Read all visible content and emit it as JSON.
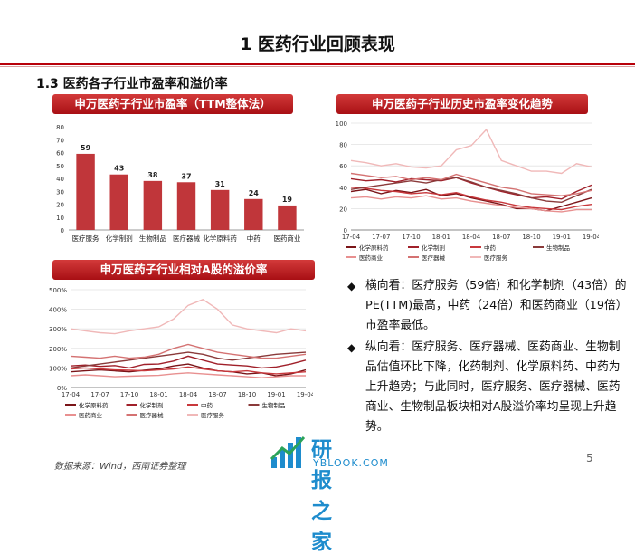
{
  "slide": {
    "title": "1 医药行业回顾表现",
    "section_heading": "1.3 医药各子行业市盈率和溢价率",
    "page_number": "5",
    "source_note": "数据来源：Wind，西南证券整理",
    "colors": {
      "accent": "#b8000a",
      "bar": "#c0363a"
    }
  },
  "banners": {
    "pe_bar": "申万医药子行业市盈率（TTM整体法）",
    "pe_trend": "申万医药子行业历史市盈率变化趋势",
    "premium": "申万医药子行业相对A股的溢价率"
  },
  "chart_data": [
    {
      "id": "pe_bar",
      "type": "bar",
      "title": "申万医药子行业市盈率（TTM整体法）",
      "categories": [
        "医疗服务",
        "化学制剂",
        "生物制品",
        "医疗器械",
        "化学原料药",
        "中药",
        "医药商业"
      ],
      "values": [
        59,
        43,
        38,
        37,
        31,
        24,
        19
      ],
      "ylim": [
        0,
        80
      ],
      "yticks": [
        "0",
        "10",
        "20",
        "30",
        "40",
        "50",
        "60",
        "70",
        "80"
      ],
      "ytick_values": [
        0,
        10,
        20,
        30,
        40,
        50,
        60,
        70,
        80
      ]
    },
    {
      "id": "pe_trend",
      "type": "line",
      "title": "申万医药子行业历史市盈率变化趋势",
      "ylim": [
        0,
        100
      ],
      "yticks": [
        "0",
        "20",
        "40",
        "60",
        "80",
        "100"
      ],
      "ytick_values": [
        0,
        20,
        40,
        60,
        80,
        100
      ],
      "xticks": [
        "17-04",
        "17-07",
        "17-10",
        "18-01",
        "18-04",
        "18-07",
        "18-10",
        "19-01",
        "19-04"
      ],
      "series": [
        {
          "name": "化学原料药",
          "color": "#7a1418",
          "dash": "",
          "values": [
            36,
            38,
            34,
            37,
            35,
            38,
            32,
            34,
            30,
            27,
            24,
            20,
            20,
            18,
            22,
            26,
            30
          ]
        },
        {
          "name": "化学制剂",
          "color": "#a0202a",
          "dash": "",
          "values": [
            48,
            46,
            47,
            45,
            48,
            47,
            46,
            49,
            44,
            40,
            36,
            33,
            30,
            31,
            29,
            36,
            42
          ]
        },
        {
          "name": "中药",
          "color": "#c8383c",
          "dash": "",
          "values": [
            40,
            39,
            37,
            36,
            34,
            35,
            33,
            35,
            31,
            28,
            26,
            23,
            21,
            20,
            19,
            22,
            24
          ]
        },
        {
          "name": "生物制品",
          "color": "#8a3a3a",
          "dash": "",
          "values": [
            38,
            40,
            42,
            44,
            46,
            44,
            47,
            49,
            45,
            40,
            37,
            34,
            30,
            27,
            26,
            32,
            38
          ]
        },
        {
          "name": "医药商业",
          "color": "#e89090",
          "dash": "",
          "values": [
            30,
            31,
            29,
            31,
            30,
            32,
            29,
            30,
            27,
            25,
            23,
            21,
            20,
            18,
            17,
            19,
            19
          ]
        },
        {
          "name": "医疗器械",
          "color": "#d47272",
          "dash": "",
          "values": [
            53,
            51,
            49,
            50,
            47,
            49,
            47,
            52,
            48,
            44,
            40,
            38,
            34,
            33,
            32,
            34,
            37
          ]
        },
        {
          "name": "医疗服务",
          "color": "#f0b8b8",
          "dash": "",
          "values": [
            65,
            63,
            60,
            62,
            59,
            58,
            60,
            75,
            79,
            94,
            65,
            60,
            55,
            55,
            53,
            62,
            59
          ]
        }
      ],
      "legend": [
        "化学原料药",
        "化学制剂",
        "中药",
        "生物制品",
        "医药商业",
        "医疗器械",
        "医疗服务"
      ]
    },
    {
      "id": "premium",
      "type": "line",
      "title": "申万医药子行业相对A股的溢价率",
      "ylim": [
        0,
        500
      ],
      "yticks": [
        "0%",
        "100%",
        "200%",
        "300%",
        "400%",
        "500%"
      ],
      "ytick_values": [
        0,
        100,
        200,
        300,
        400,
        500
      ],
      "xticks": [
        "17-04",
        "17-07",
        "17-10",
        "18-01",
        "18-04",
        "18-07",
        "18-10",
        "19-01",
        "19-04"
      ],
      "series": [
        {
          "name": "化学原料药",
          "color": "#7a1418",
          "dash": "",
          "values": [
            80,
            85,
            90,
            85,
            80,
            88,
            95,
            110,
            120,
            100,
            85,
            80,
            70,
            75,
            60,
            70,
            90
          ]
        },
        {
          "name": "化学制剂",
          "color": "#a0202a",
          "dash": "",
          "values": [
            110,
            115,
            108,
            112,
            100,
            118,
            120,
            135,
            160,
            140,
            120,
            115,
            110,
            100,
            105,
            120,
            140
          ]
        },
        {
          "name": "中药",
          "color": "#c8383c",
          "dash": "",
          "values": [
            95,
            100,
            95,
            90,
            88,
            85,
            90,
            95,
            105,
            95,
            85,
            80,
            85,
            75,
            70,
            75,
            80
          ]
        },
        {
          "name": "生物制品",
          "color": "#8a3a3a",
          "dash": "",
          "values": [
            100,
            110,
            120,
            130,
            140,
            150,
            160,
            170,
            180,
            170,
            150,
            140,
            150,
            160,
            170,
            175,
            180
          ]
        },
        {
          "name": "医药商业",
          "color": "#e89090",
          "dash": "",
          "values": [
            60,
            65,
            60,
            55,
            58,
            60,
            62,
            70,
            75,
            70,
            65,
            60,
            55,
            50,
            55,
            60,
            60
          ]
        },
        {
          "name": "医疗器械",
          "color": "#d47272",
          "dash": "",
          "values": [
            160,
            155,
            150,
            160,
            150,
            155,
            170,
            200,
            220,
            200,
            180,
            170,
            160,
            150,
            150,
            160,
            170
          ]
        },
        {
          "name": "医疗服务",
          "color": "#f0b8b8",
          "dash": "",
          "values": [
            300,
            290,
            280,
            275,
            290,
            300,
            310,
            350,
            420,
            450,
            400,
            320,
            300,
            290,
            280,
            300,
            290
          ]
        }
      ],
      "legend": [
        "化学原料药",
        "化学制剂",
        "中药",
        "生物制品",
        "医药商业",
        "医疗器械",
        "医疗服务"
      ]
    }
  ],
  "bullets": [
    {
      "icon": "diamond-bullet-icon",
      "text": "横向看：医疗服务（59倍）和化学制剂（43倍）的PE(TTM)最高，中药（24倍）和医药商业（19倍）市盈率最低。"
    },
    {
      "icon": "diamond-bullet-icon",
      "text": "纵向看：医疗服务、医疗器械、医药商业、生物制品估值环比下降，化药制剂、化学原料药、中药为上升趋势；与此同时，医疗服务、医疗器械、医药商业、生物制品板块相对A股溢价率均呈现上升趋势。"
    }
  ],
  "watermark": {
    "cn": "研报之家",
    "en": "YBLOOK.COM"
  }
}
